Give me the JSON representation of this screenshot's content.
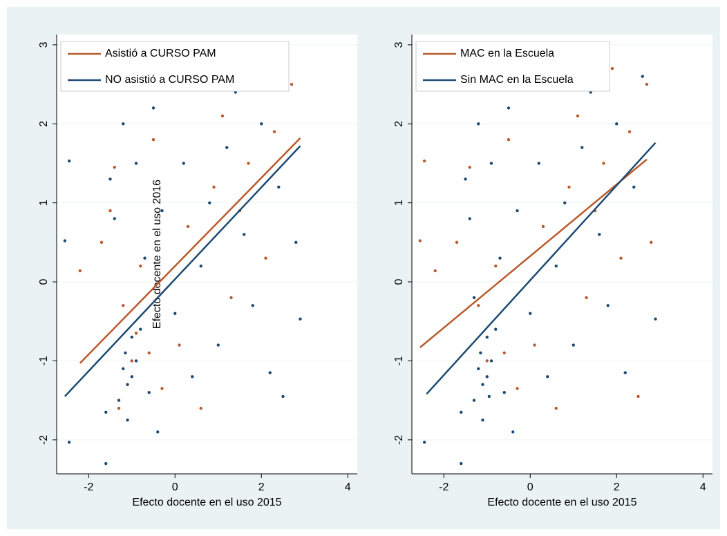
{
  "chart_data": [
    {
      "type": "scatter",
      "xlabel": "Efecto docente en el uso 2015",
      "ylabel": "Efecto docente en el uso 2016",
      "xlim": [
        -2.74,
        4.22
      ],
      "ylim": [
        -2.43,
        3.13
      ],
      "xticks": [
        -2,
        0,
        2,
        4
      ],
      "yticks": [
        -2,
        -1,
        0,
        1,
        2,
        3
      ],
      "grid": true,
      "points": [
        {
          "color": "#1c4a72",
          "x": [
            -2.55,
            -2.45,
            -2.45,
            -1.6,
            -1.6,
            -1.5,
            -1.4,
            -1.3,
            -1.2,
            -1.2,
            -1.15,
            -1.1,
            -1.0,
            -1.0,
            -0.9,
            -0.9,
            -0.8,
            -0.7,
            -0.6,
            -0.5,
            -0.4,
            -0.3,
            0,
            0.2,
            0.4,
            0.6,
            0.8,
            1.0,
            1.2,
            1.4,
            1.6,
            1.8,
            2.0,
            2.2,
            2.4,
            2.6,
            2.8,
            2.9,
            2.5,
            -1.1
          ],
          "values": [
            0.52,
            1.53,
            -2.03,
            -2.3,
            -1.65,
            1.3,
            0.8,
            -1.5,
            2.0,
            -1.1,
            -0.9,
            -1.3,
            -0.7,
            -1.2,
            1.5,
            -1.0,
            -0.6,
            0.3,
            -1.4,
            2.2,
            -1.9,
            0.9,
            -0.4,
            1.5,
            -1.2,
            0.2,
            1.0,
            -0.8,
            1.7,
            2.4,
            0.6,
            -0.3,
            2.0,
            -1.15,
            1.2,
            2.6,
            0.5,
            -0.47,
            -1.45,
            -1.75
          ]
        },
        {
          "color": "#b85a2b",
          "x": [
            -2.2,
            -1.7,
            -1.4,
            -1.2,
            -1.0,
            -0.9,
            -0.8,
            -0.6,
            -0.5,
            -0.3,
            0.1,
            0.3,
            0.6,
            0.9,
            1.1,
            1.3,
            1.5,
            1.7,
            1.9,
            2.1,
            2.3,
            2.7,
            -1.3,
            -1.5
          ],
          "values": [
            0.14,
            0.5,
            1.45,
            -0.3,
            -1.0,
            -0.65,
            0.2,
            -0.9,
            1.8,
            -1.35,
            -0.8,
            0.7,
            -1.6,
            1.2,
            2.1,
            -0.2,
            0.9,
            1.5,
            2.7,
            0.3,
            1.9,
            2.5,
            -1.6,
            0.9
          ]
        }
      ],
      "fits": [
        {
          "name": "Asistió a CURSO PAM",
          "color": "#b85a2b",
          "x": [
            -2.2,
            2.9
          ],
          "values": [
            -1.03,
            1.82
          ]
        },
        {
          "name": "NO asistió a CURSO PAM",
          "color": "#1c4a72",
          "x": [
            -2.55,
            2.9
          ],
          "values": [
            -1.45,
            1.72
          ]
        }
      ]
    },
    {
      "type": "scatter",
      "xlabel": "Efecto docente en el uso 2015",
      "xlim": [
        -2.74,
        4.22
      ],
      "ylim": [
        -2.43,
        3.13
      ],
      "xticks": [
        -2,
        0,
        2,
        4
      ],
      "yticks": [
        -2,
        -1,
        0,
        1,
        2,
        3
      ],
      "grid": true,
      "points": [
        {
          "color": "#1c4a72",
          "x": [
            -2.45,
            -1.6,
            -1.6,
            -1.5,
            -1.4,
            -1.3,
            -1.2,
            -1.2,
            -1.15,
            -1.1,
            -1.0,
            -1.0,
            -0.9,
            -0.9,
            -0.8,
            -0.7,
            -0.6,
            -0.5,
            -0.4,
            -0.3,
            0,
            0.2,
            0.4,
            0.6,
            0.8,
            1.0,
            1.2,
            1.4,
            1.6,
            1.8,
            2.0,
            2.2,
            2.4,
            2.6,
            2.9,
            -1.1,
            -1.3,
            -0.95
          ],
          "values": [
            -2.03,
            -2.3,
            -1.65,
            1.3,
            0.8,
            -1.5,
            2.0,
            -1.1,
            -0.9,
            -1.3,
            -0.7,
            -1.2,
            1.5,
            -1.0,
            -0.6,
            0.3,
            -1.4,
            2.2,
            -1.9,
            0.9,
            -0.4,
            1.5,
            -1.2,
            0.2,
            1.0,
            -0.8,
            1.7,
            2.4,
            0.6,
            -0.3,
            2.0,
            -1.15,
            1.2,
            2.6,
            -0.47,
            -1.75,
            -0.2,
            -1.45
          ]
        },
        {
          "color": "#b85a2b",
          "x": [
            -2.55,
            -2.45,
            -2.2,
            -1.7,
            -1.4,
            -1.2,
            -1.0,
            -0.8,
            -0.6,
            -0.5,
            -0.3,
            0.1,
            0.3,
            0.6,
            0.9,
            1.1,
            1.3,
            1.5,
            1.7,
            1.9,
            2.1,
            2.3,
            2.5,
            2.7,
            2.8
          ],
          "values": [
            0.52,
            1.53,
            0.14,
            0.5,
            1.45,
            -0.3,
            -1.0,
            0.2,
            -0.9,
            1.8,
            -1.35,
            -0.8,
            0.7,
            -1.6,
            1.2,
            2.1,
            -0.2,
            0.9,
            1.5,
            2.7,
            0.3,
            1.9,
            -1.45,
            2.5,
            0.5
          ]
        }
      ],
      "fits": [
        {
          "name": "MAC en la Escuela",
          "color": "#b85a2b",
          "x": [
            -2.55,
            2.7
          ],
          "values": [
            -0.83,
            1.55
          ]
        },
        {
          "name": "Sin MAC en la Escuela",
          "color": "#1c4a72",
          "x": [
            -2.4,
            2.9
          ],
          "values": [
            -1.42,
            1.76
          ]
        }
      ]
    }
  ]
}
